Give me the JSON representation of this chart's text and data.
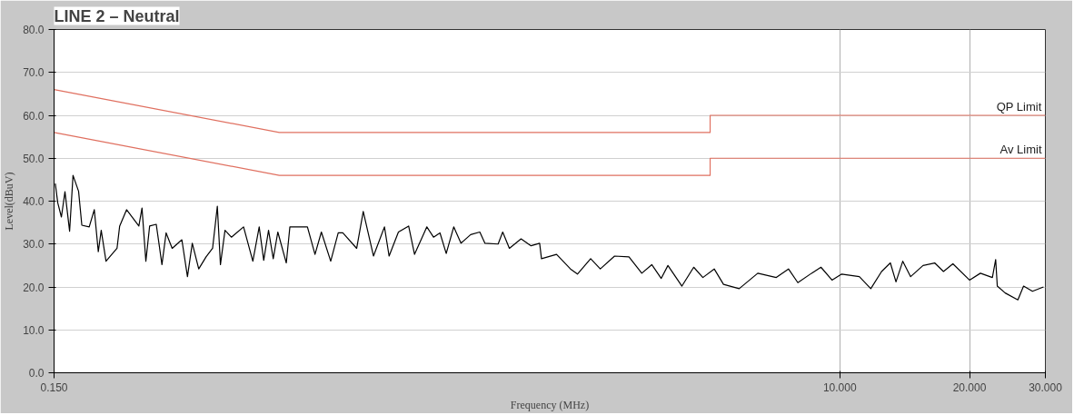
{
  "chart_data": {
    "type": "line",
    "title": "LINE 2 – Neutral",
    "xlabel": "Frequency (MHz)",
    "ylabel": "Level(dBuV)",
    "log": "x",
    "grid": true,
    "xlim": [
      0.15,
      30
    ],
    "xticks": [
      {
        "value": 0.15,
        "label": "0.150"
      },
      {
        "value": 10,
        "label": "10.000"
      },
      {
        "value": 20,
        "label": "20.000"
      },
      {
        "value": 30,
        "label": "30.000"
      }
    ],
    "ylim": [
      0,
      80
    ],
    "yticks": [
      {
        "value": 0,
        "label": "0.0"
      },
      {
        "value": 10,
        "label": "10.0"
      },
      {
        "value": 20,
        "label": "20.0"
      },
      {
        "value": 30,
        "label": "30.0"
      },
      {
        "value": 40,
        "label": "40.0"
      },
      {
        "value": 50,
        "label": "50.0"
      },
      {
        "value": 60,
        "label": "60.0"
      },
      {
        "value": 70,
        "label": "70.0"
      },
      {
        "value": 80,
        "label": "80.0"
      }
    ],
    "series": [
      {
        "name": "QP Limit",
        "color": "#e07060",
        "x": [
          0.15,
          0.5,
          5,
          5,
          30
        ],
        "values": [
          66,
          56,
          56,
          60,
          60
        ]
      },
      {
        "name": "Av Limit",
        "color": "#e07060",
        "x": [
          0.15,
          0.5,
          5,
          5,
          30
        ],
        "values": [
          56,
          46,
          46,
          50,
          50
        ]
      },
      {
        "color": "#000000",
        "x": [
          0.151,
          0.153,
          0.156,
          0.159,
          0.163,
          0.166,
          0.171,
          0.174,
          0.181,
          0.186,
          0.19,
          0.193,
          0.198,
          0.21,
          0.213,
          0.221,
          0.236,
          0.24,
          0.245,
          0.25,
          0.259,
          0.267,
          0.273,
          0.282,
          0.297,
          0.306,
          0.314,
          0.325,
          0.338,
          0.35,
          0.359,
          0.365,
          0.374,
          0.387,
          0.413,
          0.434,
          0.449,
          0.46,
          0.472,
          0.484,
          0.496,
          0.519,
          0.529,
          0.581,
          0.605,
          0.626,
          0.658,
          0.685,
          0.702,
          0.756,
          0.783,
          0.827,
          0.877,
          0.899,
          0.945,
          0.998,
          1.03,
          1.1,
          1.14,
          1.18,
          1.22,
          1.27,
          1.32,
          1.39,
          1.46,
          1.5,
          1.61,
          1.65,
          1.71,
          1.82,
          1.92,
          2.01,
          2.03,
          2.2,
          2.37,
          2.46,
          2.64,
          2.78,
          3.0,
          3.24,
          3.47,
          3.66,
          3.85,
          3.99,
          4.3,
          4.58,
          4.81,
          5.11,
          5.37,
          5.84,
          6.45,
          7.12,
          7.6,
          7.99,
          8.6,
          9.04,
          9.59,
          10.1,
          11.1,
          11.8,
          12.5,
          13.1,
          13.5,
          14.0,
          14.6,
          15.6,
          16.6,
          17.4,
          18.3,
          20.0,
          21.2,
          22.6,
          23.0,
          23.2,
          24.2,
          25.9,
          26.7,
          28.0,
          29.7
        ],
        "values": [
          44.1,
          39.6,
          36.3,
          42.2,
          33,
          46,
          42.3,
          34.4,
          34,
          38,
          28.2,
          33.2,
          26,
          29,
          34.2,
          38,
          34.2,
          38.4,
          26,
          34.2,
          34.6,
          25.2,
          32.6,
          29,
          31,
          22.4,
          30.2,
          24.2,
          27,
          29,
          38.8,
          25.2,
          33.2,
          31.6,
          34,
          26,
          34,
          26.2,
          33.2,
          26.6,
          32.8,
          25.6,
          34,
          34,
          27.6,
          32.8,
          26,
          32.6,
          32.6,
          29,
          37.6,
          27.2,
          34,
          27.2,
          32.8,
          34.2,
          27.6,
          34,
          31.6,
          32.6,
          27.8,
          34,
          30.2,
          32.2,
          32.8,
          30.2,
          30,
          32.8,
          29,
          31.2,
          29.6,
          30.2,
          26.6,
          27.6,
          24.2,
          23,
          26.6,
          24.2,
          27.2,
          27,
          23.2,
          25.2,
          22,
          25,
          20.2,
          24.6,
          22.2,
          24.2,
          20.6,
          19.6,
          23.2,
          22.2,
          24.2,
          21,
          23.2,
          24.6,
          21.6,
          23,
          22.4,
          19.6,
          23.6,
          25.6,
          21.2,
          26,
          22.4,
          25,
          25.6,
          23.6,
          25.4,
          21.6,
          23.2,
          22.2,
          26.4,
          20.2,
          18.6,
          17,
          20.2,
          19,
          20
        ]
      }
    ]
  }
}
